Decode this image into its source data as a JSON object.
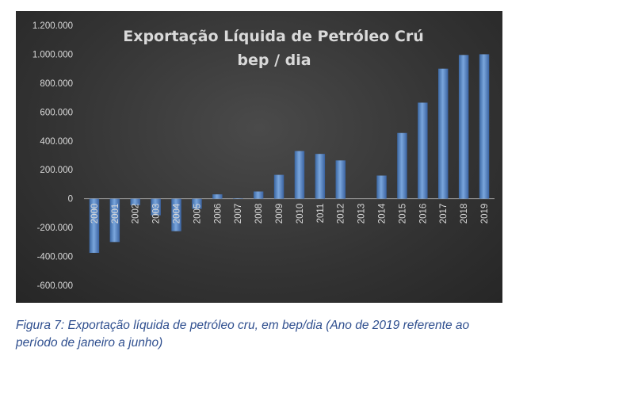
{
  "chart_data": {
    "type": "bar",
    "title": "Exportação  Líquida  de  Petróleo  Crú",
    "subtitle": "bep / dia",
    "categories": [
      "2000",
      "2001",
      "2002",
      "2003",
      "2004",
      "2005",
      "2006",
      "2007",
      "2008",
      "2009",
      "2010",
      "2011",
      "2012",
      "2013",
      "2014",
      "2015",
      "2016",
      "2017",
      "2018",
      "2019"
    ],
    "values": [
      -375000,
      -300000,
      -45000,
      -115000,
      -225000,
      -70000,
      30000,
      3000,
      50000,
      165000,
      330000,
      310000,
      265000,
      0,
      160000,
      455000,
      665000,
      900000,
      995000,
      1000000
    ],
    "ylim": [
      -600000,
      1200000
    ],
    "yticks": [
      "1.200.000",
      "1.000.000",
      "800.000",
      "600.000",
      "400.000",
      "200.000",
      "0",
      "-200.000",
      "-400.000",
      "-600.000"
    ],
    "ytick_values": [
      1200000,
      1000000,
      800000,
      600000,
      400000,
      200000,
      0,
      -200000,
      -400000,
      -600000
    ],
    "grid": false,
    "legend": "none",
    "colors": {
      "bar": "#4f81bd",
      "bar_light": "#7aa6dc",
      "background": "#333333",
      "text": "#d9d9d9"
    }
  },
  "caption": {
    "line1": "Figura 7: Exportação líquida de petróleo cru, em bep/dia (Ano de 2019 referente ao",
    "line2": "período de janeiro a junho)"
  }
}
